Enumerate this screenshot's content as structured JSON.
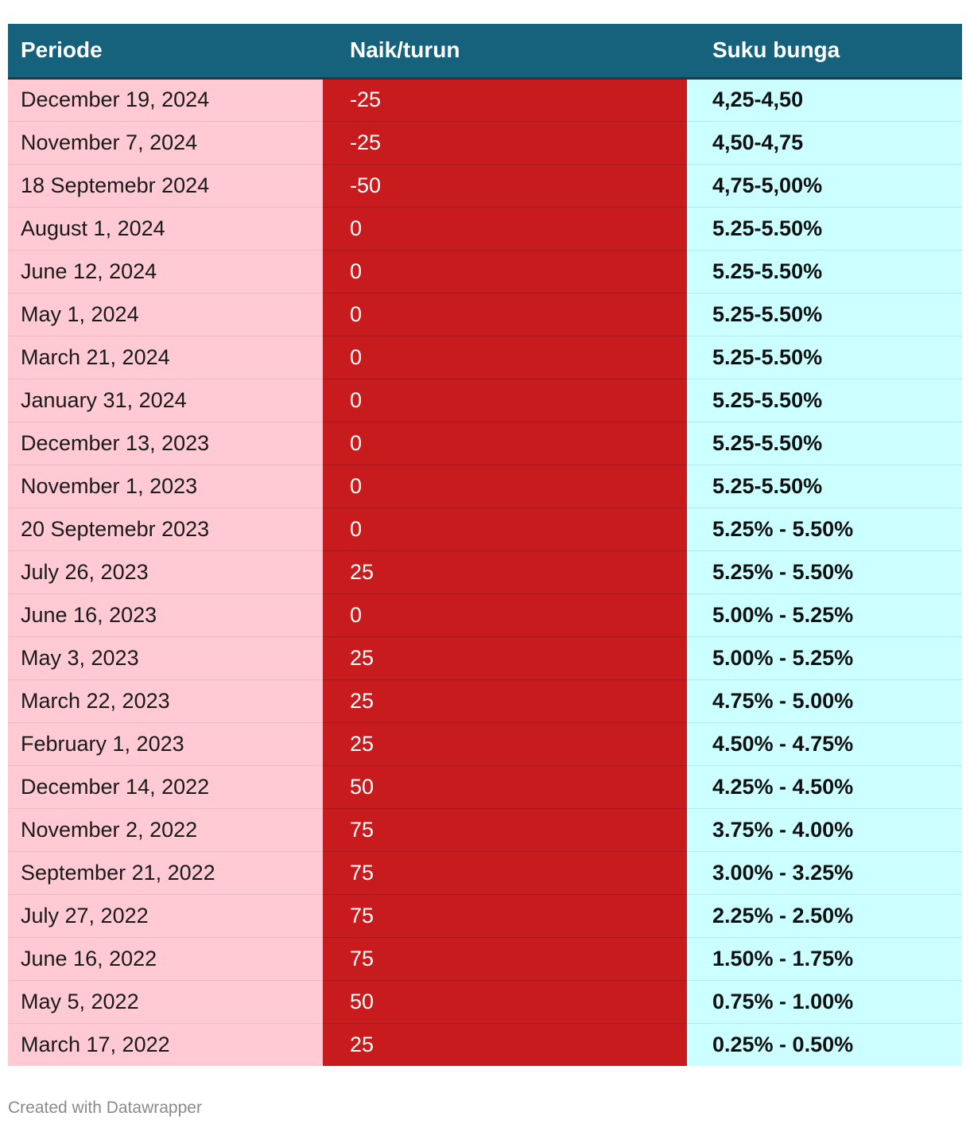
{
  "chart_data": {
    "type": "table",
    "columns": [
      "Periode",
      "Naik/turun",
      "Suku bunga"
    ],
    "column_colors": {
      "header": "#16617b",
      "Periode": "#ffcad4",
      "Naik/turun": "#c81b1e",
      "Suku bunga": "#ccffff"
    },
    "rows": [
      [
        "December 19, 2024",
        "-25",
        "4,25-4,50"
      ],
      [
        "November 7, 2024",
        "-25",
        "4,50-4,75"
      ],
      [
        "18 Septemebr 2024",
        "-50",
        "4,75-5,00%"
      ],
      [
        "August 1, 2024",
        "0",
        "5.25-5.50%"
      ],
      [
        "June 12, 2024",
        "0",
        "5.25-5.50%"
      ],
      [
        "May 1, 2024",
        "0",
        "5.25-5.50%"
      ],
      [
        "March 21, 2024",
        "0",
        "5.25-5.50%"
      ],
      [
        "January 31, 2024",
        "0",
        "5.25-5.50%"
      ],
      [
        "December 13, 2023",
        "0",
        "5.25-5.50%"
      ],
      [
        "November 1, 2023",
        "0",
        "5.25-5.50%"
      ],
      [
        "20 Septemebr 2023",
        "0",
        "5.25% - 5.50%"
      ],
      [
        "July 26, 2023",
        "25",
        "5.25% - 5.50%"
      ],
      [
        "June 16, 2023",
        "0",
        "5.00% - 5.25%"
      ],
      [
        "May 3, 2023",
        "25",
        "5.00% - 5.25%"
      ],
      [
        "March 22, 2023",
        "25",
        "4.75% - 5.00%"
      ],
      [
        "February 1, 2023",
        "25",
        "4.50% - 4.75%"
      ],
      [
        "December 14, 2022",
        "50",
        "4.25% - 4.50%"
      ],
      [
        "November 2, 2022",
        "75",
        "3.75% - 4.00%"
      ],
      [
        "September 21, 2022",
        "75",
        "3.00% - 3.25%"
      ],
      [
        "July 27, 2022",
        "75",
        "2.25% - 2.50%"
      ],
      [
        "June 16, 2022",
        "75",
        "1.50% - 1.75%"
      ],
      [
        "May 5, 2022",
        "50",
        "0.75% - 1.00%"
      ],
      [
        "March 17, 2022",
        "25",
        "0.25% - 0.50%"
      ]
    ]
  },
  "footer": {
    "credit": "Created with Datawrapper"
  }
}
